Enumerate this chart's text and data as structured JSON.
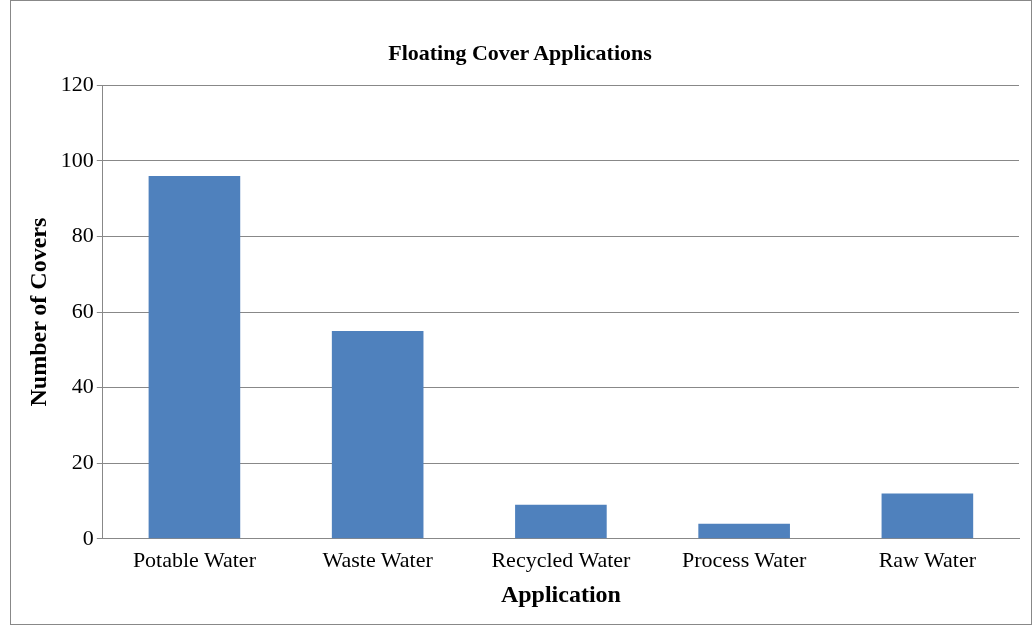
{
  "chart_data": {
    "type": "bar",
    "title": "Floating Cover Applications",
    "xlabel": "Application",
    "ylabel": "Number of Covers",
    "categories": [
      "Potable Water",
      "Waste Water",
      "Recycled Water",
      "Process Water",
      "Raw Water"
    ],
    "values": [
      96,
      55,
      9,
      4,
      12
    ],
    "color": "#4f81bd",
    "ylim": [
      0,
      120
    ],
    "yticks": [
      0,
      20,
      40,
      60,
      80,
      100,
      120
    ],
    "grid": "y",
    "legend": false
  }
}
